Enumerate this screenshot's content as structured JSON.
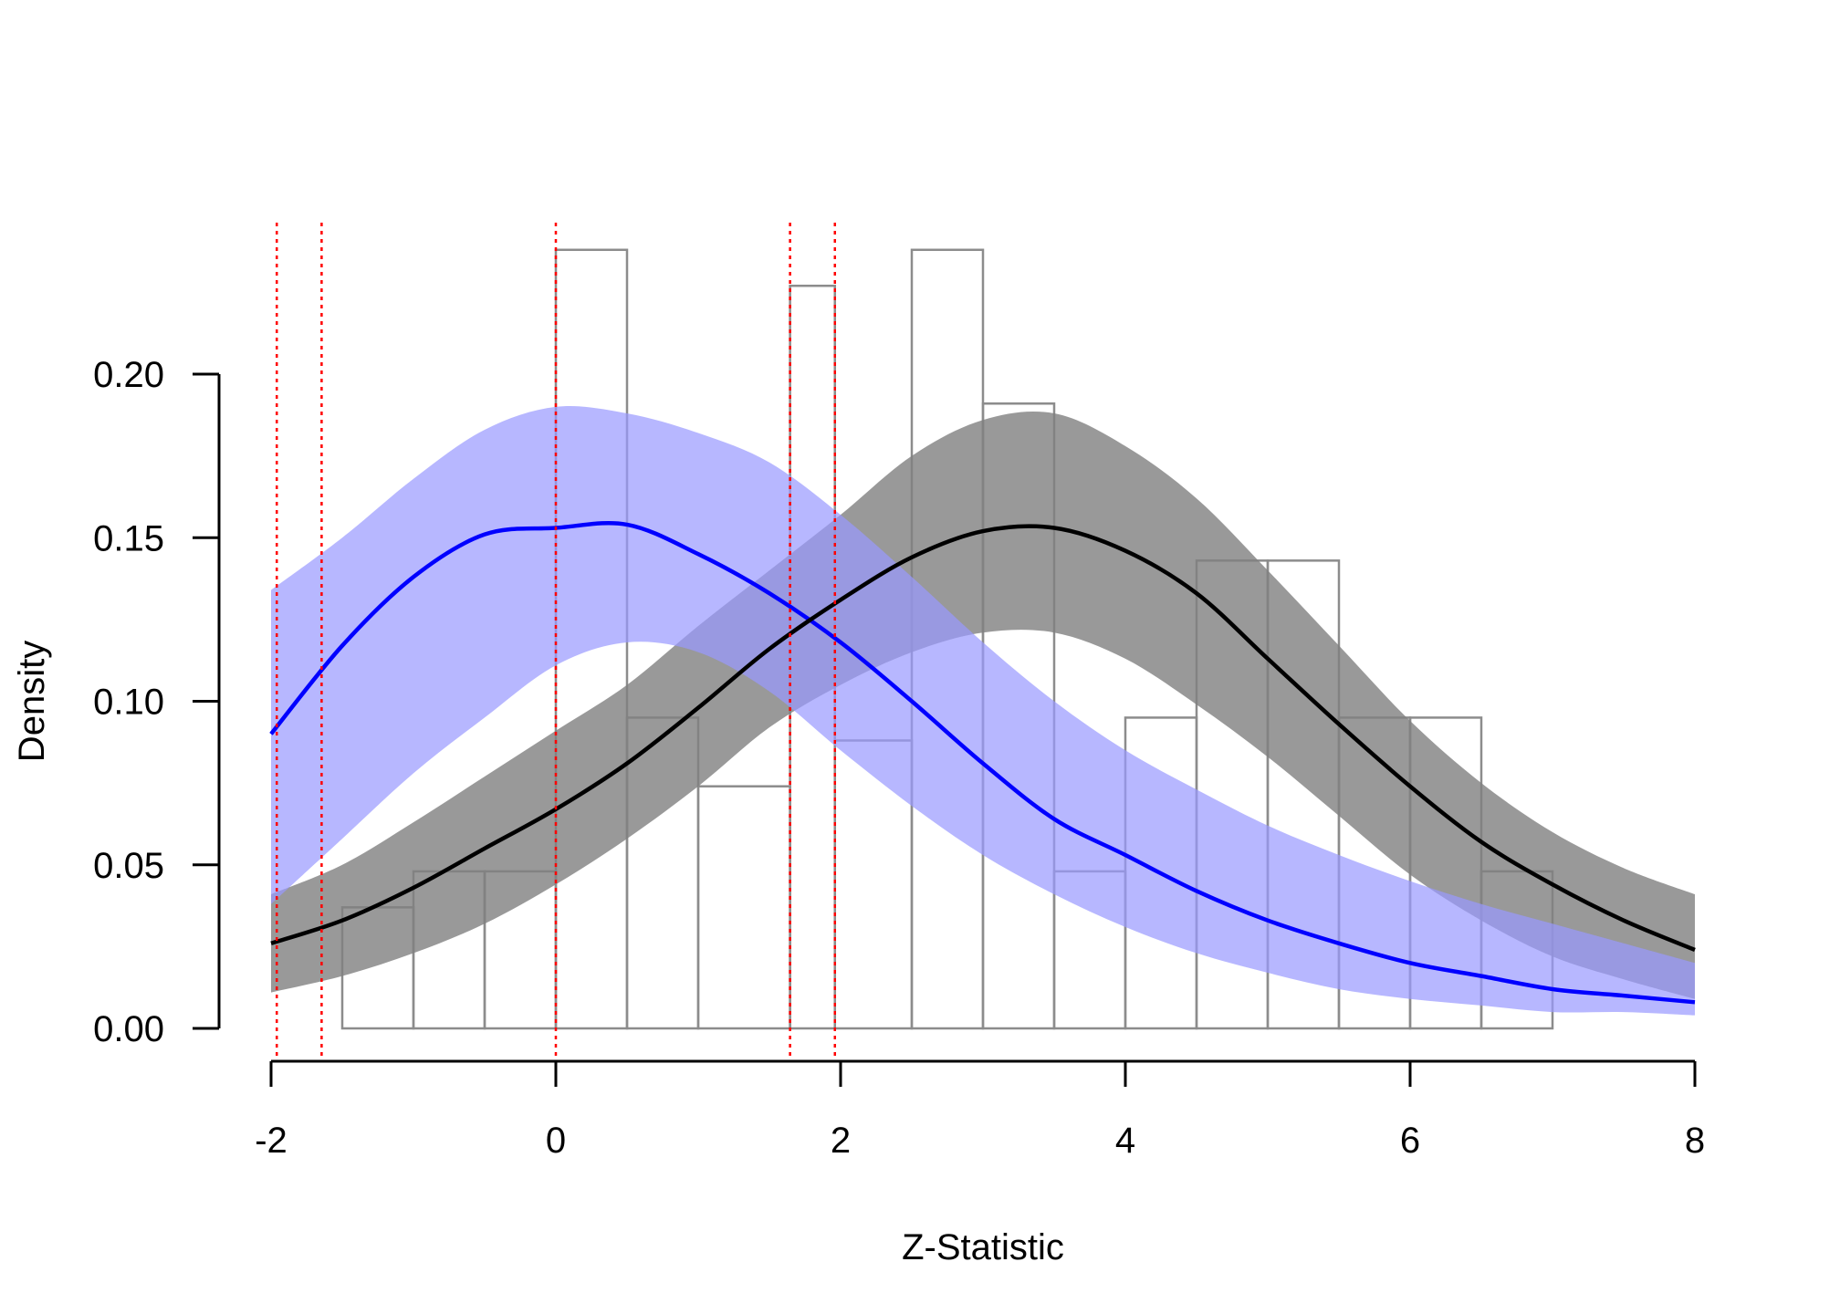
{
  "chart_data": {
    "type": "histogram",
    "title": "",
    "xlabel": "Z-Statistic",
    "ylabel": "Density",
    "xlim": [
      -2,
      8
    ],
    "ylim": [
      0,
      0.2
    ],
    "x_ticks": [
      -2,
      0,
      2,
      4,
      6,
      8
    ],
    "y_ticks": [
      0,
      0.05,
      0.1,
      0.15,
      0.2
    ],
    "x_tick_labels": [
      "-2",
      "0",
      "2",
      "4",
      "6",
      "8"
    ],
    "y_tick_labels": [
      "0.00",
      "0.05",
      "0.10",
      "0.15",
      "0.20"
    ],
    "grid": false,
    "legend": "none",
    "histogram": {
      "bins": [
        {
          "x0": -1.5,
          "x1": -1.0,
          "density": 0.037
        },
        {
          "x0": -1.0,
          "x1": -0.5,
          "density": 0.048
        },
        {
          "x0": -0.5,
          "x1": 0.0,
          "density": 0.048
        },
        {
          "x0": 0.0,
          "x1": 0.5,
          "density": 0.238
        },
        {
          "x0": 0.5,
          "x1": 1.0,
          "density": 0.095
        },
        {
          "x0": 1.0,
          "x1": 1.645,
          "density": 0.074
        },
        {
          "x0": 1.645,
          "x1": 1.96,
          "density": 0.227
        },
        {
          "x0": 1.96,
          "x1": 2.5,
          "density": 0.088
        },
        {
          "x0": 2.5,
          "x1": 3.0,
          "density": 0.238
        },
        {
          "x0": 3.0,
          "x1": 3.5,
          "density": 0.191
        },
        {
          "x0": 3.5,
          "x1": 4.0,
          "density": 0.048
        },
        {
          "x0": 4.0,
          "x1": 4.5,
          "density": 0.095
        },
        {
          "x0": 4.5,
          "x1": 5.0,
          "density": 0.143
        },
        {
          "x0": 5.0,
          "x1": 5.5,
          "density": 0.143
        },
        {
          "x0": 5.5,
          "x1": 6.0,
          "density": 0.095
        },
        {
          "x0": 6.0,
          "x1": 6.5,
          "density": 0.095
        },
        {
          "x0": 6.5,
          "x1": 7.0,
          "density": 0.048
        }
      ],
      "color": "#8c8c8c"
    },
    "reference_lines": {
      "x": [
        -1.96,
        -1.645,
        0,
        1.645,
        1.96
      ],
      "color": "#ff0000",
      "style": "dotted"
    },
    "x": [
      -2,
      -1.5,
      -1,
      -0.5,
      0,
      0.5,
      1,
      1.5,
      2,
      2.5,
      3,
      3.5,
      4,
      4.5,
      5,
      5.5,
      6,
      6.5,
      7,
      7.5,
      8
    ],
    "series": [
      {
        "color": "#0000ff",
        "band_color": "#9999ff",
        "values": [
          0.09,
          0.117,
          0.138,
          0.151,
          0.153,
          0.154,
          0.145,
          0.133,
          0.118,
          0.1,
          0.081,
          0.064,
          0.053,
          0.042,
          0.033,
          0.026,
          0.02,
          0.016,
          0.012,
          0.01,
          0.008
        ],
        "lower": [
          0.038,
          0.058,
          0.078,
          0.095,
          0.111,
          0.118,
          0.115,
          0.103,
          0.085,
          0.068,
          0.053,
          0.041,
          0.031,
          0.023,
          0.017,
          0.012,
          0.009,
          0.007,
          0.005,
          0.005,
          0.004
        ],
        "upper": [
          0.134,
          0.15,
          0.168,
          0.183,
          0.19,
          0.188,
          0.182,
          0.173,
          0.157,
          0.138,
          0.118,
          0.1,
          0.085,
          0.073,
          0.062,
          0.053,
          0.045,
          0.038,
          0.032,
          0.026,
          0.02
        ]
      },
      {
        "color": "#000000",
        "band_color": "#7f7f7f",
        "values": [
          0.026,
          0.033,
          0.043,
          0.055,
          0.067,
          0.081,
          0.098,
          0.116,
          0.131,
          0.144,
          0.152,
          0.153,
          0.146,
          0.133,
          0.113,
          0.093,
          0.074,
          0.057,
          0.044,
          0.033,
          0.024
        ],
        "lower": [
          0.011,
          0.016,
          0.023,
          0.032,
          0.044,
          0.058,
          0.074,
          0.092,
          0.105,
          0.115,
          0.121,
          0.121,
          0.113,
          0.099,
          0.083,
          0.065,
          0.047,
          0.033,
          0.022,
          0.015,
          0.009
        ],
        "upper": [
          0.041,
          0.05,
          0.063,
          0.077,
          0.091,
          0.105,
          0.123,
          0.14,
          0.157,
          0.175,
          0.186,
          0.188,
          0.178,
          0.162,
          0.14,
          0.117,
          0.094,
          0.075,
          0.06,
          0.049,
          0.041
        ]
      }
    ]
  }
}
